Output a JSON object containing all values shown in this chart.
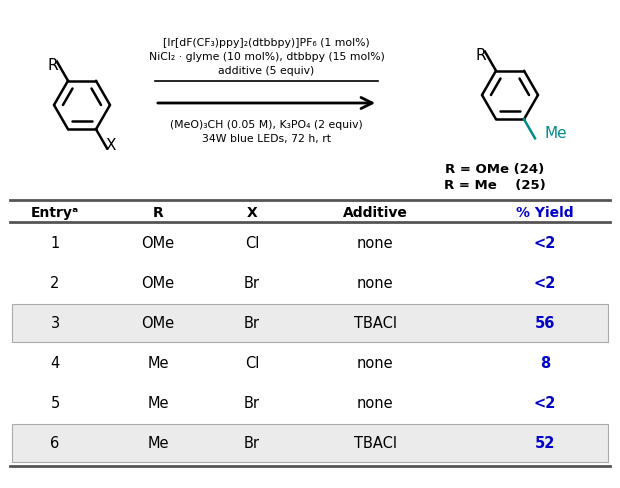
{
  "reaction_line1": "[Ir[dF(CF₃)ppy]₂(dtbbpy)]PF₆ (1 mol%)",
  "reaction_line2": "NiCl₂ · glyme (10 mol%), dtbbpy (15 mol%)",
  "reaction_line3": "additive (5 equiv)",
  "reaction_line4": "(MeO)₃CH (0.05 M), K₃PO₄ (2 equiv)",
  "reaction_line5": "34W blue LEDs, 72 h, rt",
  "product_label1": "R = OMe (24)",
  "product_label2": "R = Me    (25)",
  "table_headers": [
    "Entryᵃ",
    "R",
    "X",
    "Additive",
    "% Yield"
  ],
  "table_data": [
    [
      "1",
      "OMe",
      "Cl",
      "none",
      "<2"
    ],
    [
      "2",
      "OMe",
      "Br",
      "none",
      "<2"
    ],
    [
      "3",
      "OMe",
      "Br",
      "TBACl",
      "56"
    ],
    [
      "4",
      "Me",
      "Cl",
      "none",
      "8"
    ],
    [
      "5",
      "Me",
      "Br",
      "none",
      "<2"
    ],
    [
      "6",
      "Me",
      "Br",
      "TBACl",
      "52"
    ]
  ],
  "highlighted_rows": [
    2,
    5
  ],
  "yield_color": "#0000CC",
  "header_color": "#000000",
  "highlight_bg": "#EBEBEB",
  "bg_color": "#FFFFFF",
  "teal_color": "#008B8B"
}
